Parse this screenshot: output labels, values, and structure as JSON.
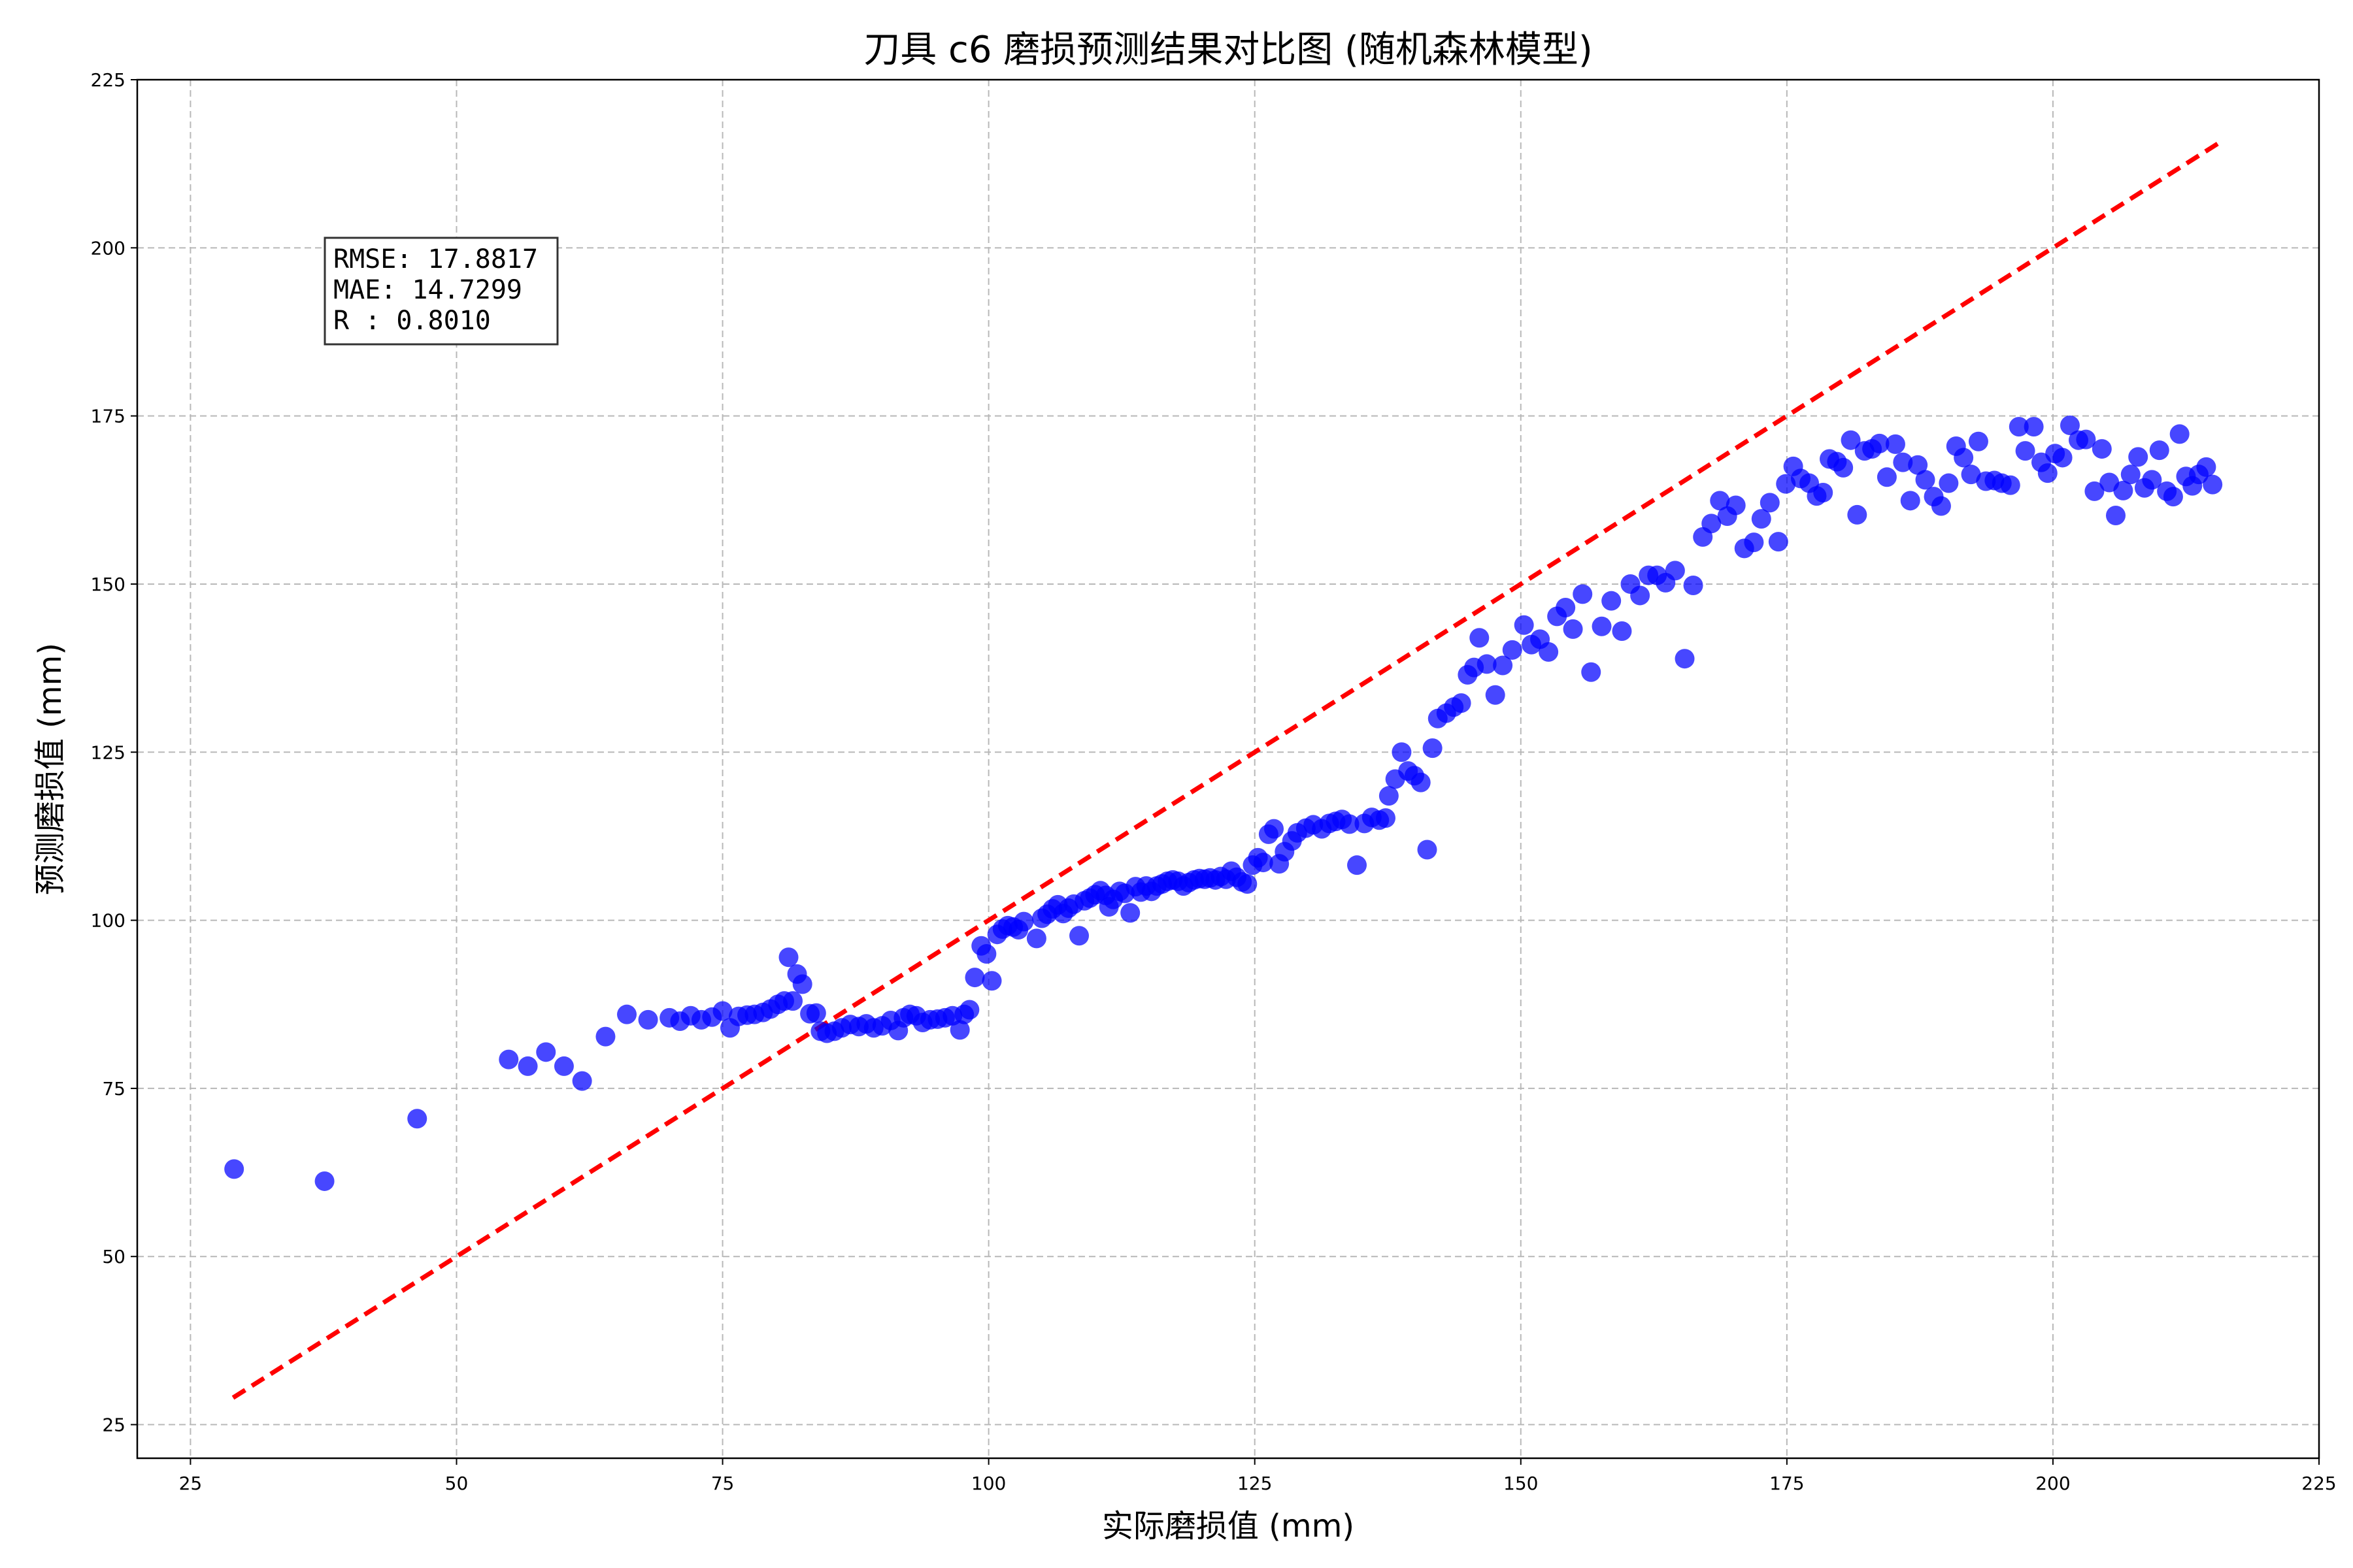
{
  "chart_data": {
    "type": "scatter",
    "title": "刀具 c6 磨损预测结果对比图 (随机森林模型)",
    "xlabel": "实际磨损值 (mm)",
    "ylabel": "预测磨损值 (mm)",
    "xlim": [
      20,
      225
    ],
    "ylim": [
      20,
      225
    ],
    "xticks": [
      25,
      50,
      75,
      100,
      125,
      150,
      175,
      200,
      225
    ],
    "yticks": [
      25,
      50,
      75,
      100,
      125,
      150,
      175,
      200,
      225
    ],
    "grid": true,
    "point_color": "#0000ff",
    "reference_line": {
      "color": "#ff0000",
      "style": "dashed",
      "x": [
        29,
        215.5
      ],
      "y": [
        29,
        215.5
      ]
    },
    "stats": {
      "lines": [
        "RMSE: 17.8817",
        "MAE: 14.7299",
        "R  : 0.8010"
      ]
    },
    "points": [
      [
        29.1,
        63.0
      ],
      [
        37.6,
        61.2
      ],
      [
        46.3,
        70.5
      ],
      [
        54.9,
        79.3
      ],
      [
        56.7,
        78.3
      ],
      [
        58.4,
        80.4
      ],
      [
        60.1,
        78.3
      ],
      [
        61.8,
        76.1
      ],
      [
        64.0,
        82.7
      ],
      [
        66.0,
        86.0
      ],
      [
        68.0,
        85.2
      ],
      [
        70.0,
        85.5
      ],
      [
        71.0,
        85.0
      ],
      [
        72.0,
        85.8
      ],
      [
        73.0,
        85.2
      ],
      [
        74.0,
        85.6
      ],
      [
        75.0,
        86.5
      ],
      [
        75.7,
        84.0
      ],
      [
        76.5,
        85.7
      ],
      [
        77.3,
        85.9
      ],
      [
        78.0,
        86.0
      ],
      [
        78.8,
        86.3
      ],
      [
        79.5,
        86.8
      ],
      [
        80.2,
        87.5
      ],
      [
        80.8,
        88.0
      ],
      [
        81.2,
        94.5
      ],
      [
        81.6,
        88.0
      ],
      [
        82.0,
        92.0
      ],
      [
        82.5,
        90.5
      ],
      [
        83.2,
        86.1
      ],
      [
        83.8,
        86.2
      ],
      [
        84.2,
        83.5
      ],
      [
        84.8,
        83.2
      ],
      [
        85.5,
        83.5
      ],
      [
        86.2,
        84.0
      ],
      [
        87.0,
        84.5
      ],
      [
        87.8,
        84.2
      ],
      [
        88.5,
        84.6
      ],
      [
        89.2,
        84.0
      ],
      [
        90.0,
        84.3
      ],
      [
        90.8,
        85.1
      ],
      [
        91.5,
        83.6
      ],
      [
        92.0,
        85.5
      ],
      [
        92.6,
        86.0
      ],
      [
        93.2,
        85.8
      ],
      [
        93.8,
        84.8
      ],
      [
        94.5,
        85.2
      ],
      [
        95.2,
        85.3
      ],
      [
        95.9,
        85.5
      ],
      [
        96.6,
        85.8
      ],
      [
        97.3,
        83.7
      ],
      [
        97.7,
        86.0
      ],
      [
        98.2,
        86.7
      ],
      [
        98.7,
        91.5
      ],
      [
        99.3,
        96.2
      ],
      [
        99.8,
        95.0
      ],
      [
        100.3,
        91.0
      ],
      [
        100.8,
        97.9
      ],
      [
        101.3,
        98.7
      ],
      [
        101.8,
        99.2
      ],
      [
        102.3,
        99.0
      ],
      [
        102.8,
        98.6
      ],
      [
        103.3,
        99.8
      ],
      [
        104.5,
        97.3
      ],
      [
        105.0,
        100.3
      ],
      [
        105.5,
        100.9
      ],
      [
        106.0,
        101.7
      ],
      [
        106.5,
        102.3
      ],
      [
        107.0,
        101.0
      ],
      [
        107.5,
        101.8
      ],
      [
        108.0,
        102.4
      ],
      [
        108.5,
        97.7
      ],
      [
        109.0,
        102.9
      ],
      [
        109.5,
        103.3
      ],
      [
        110.0,
        103.8
      ],
      [
        110.5,
        104.4
      ],
      [
        111.0,
        103.7
      ],
      [
        111.3,
        102.0
      ],
      [
        111.7,
        103.1
      ],
      [
        112.3,
        104.3
      ],
      [
        112.8,
        104.0
      ],
      [
        113.3,
        101.1
      ],
      [
        113.8,
        105.0
      ],
      [
        114.3,
        104.2
      ],
      [
        114.8,
        105.1
      ],
      [
        115.3,
        104.3
      ],
      [
        115.8,
        105.1
      ],
      [
        116.3,
        105.4
      ],
      [
        116.8,
        105.8
      ],
      [
        117.3,
        106.0
      ],
      [
        117.8,
        105.8
      ],
      [
        118.3,
        105.1
      ],
      [
        118.8,
        105.6
      ],
      [
        119.3,
        106.0
      ],
      [
        119.8,
        106.2
      ],
      [
        120.3,
        106.1
      ],
      [
        120.8,
        106.3
      ],
      [
        121.3,
        106.0
      ],
      [
        121.8,
        106.5
      ],
      [
        122.3,
        106.1
      ],
      [
        122.8,
        107.3
      ],
      [
        123.3,
        106.4
      ],
      [
        123.8,
        105.7
      ],
      [
        124.3,
        105.4
      ],
      [
        124.8,
        108.2
      ],
      [
        125.3,
        109.3
      ],
      [
        125.8,
        108.6
      ],
      [
        126.3,
        112.8
      ],
      [
        126.8,
        113.6
      ],
      [
        127.3,
        108.4
      ],
      [
        127.8,
        110.2
      ],
      [
        128.5,
        111.8
      ],
      [
        129.0,
        113.0
      ],
      [
        129.8,
        113.7
      ],
      [
        130.5,
        114.2
      ],
      [
        131.3,
        113.6
      ],
      [
        132.0,
        114.4
      ],
      [
        132.6,
        114.7
      ],
      [
        133.2,
        115.0
      ],
      [
        133.9,
        114.3
      ],
      [
        134.6,
        108.2
      ],
      [
        135.3,
        114.4
      ],
      [
        136.0,
        115.3
      ],
      [
        136.7,
        114.9
      ],
      [
        137.3,
        115.2
      ],
      [
        137.6,
        118.5
      ],
      [
        138.2,
        121.0
      ],
      [
        138.8,
        125.0
      ],
      [
        139.4,
        122.2
      ],
      [
        140.0,
        121.5
      ],
      [
        140.6,
        120.5
      ],
      [
        141.2,
        110.5
      ],
      [
        141.7,
        125.6
      ],
      [
        142.2,
        130.0
      ],
      [
        143.0,
        130.8
      ],
      [
        143.7,
        131.7
      ],
      [
        144.4,
        132.3
      ],
      [
        145.0,
        136.5
      ],
      [
        145.6,
        137.6
      ],
      [
        146.1,
        142.0
      ],
      [
        146.8,
        138.1
      ],
      [
        147.6,
        133.5
      ],
      [
        148.3,
        137.9
      ],
      [
        149.2,
        140.2
      ],
      [
        150.3,
        143.9
      ],
      [
        151.0,
        141.0
      ],
      [
        151.8,
        141.8
      ],
      [
        152.6,
        139.9
      ],
      [
        153.4,
        145.2
      ],
      [
        154.2,
        146.5
      ],
      [
        154.9,
        143.3
      ],
      [
        155.8,
        148.5
      ],
      [
        156.6,
        136.9
      ],
      [
        157.6,
        143.7
      ],
      [
        158.5,
        147.5
      ],
      [
        159.5,
        143.0
      ],
      [
        160.3,
        150.0
      ],
      [
        161.2,
        148.3
      ],
      [
        162.0,
        151.3
      ],
      [
        162.8,
        151.3
      ],
      [
        163.6,
        150.2
      ],
      [
        164.5,
        152.0
      ],
      [
        165.4,
        138.9
      ],
      [
        166.2,
        149.8
      ],
      [
        167.1,
        157.0
      ],
      [
        167.9,
        159.0
      ],
      [
        168.7,
        162.4
      ],
      [
        169.4,
        160.1
      ],
      [
        170.2,
        161.7
      ],
      [
        171.0,
        155.3
      ],
      [
        171.9,
        156.2
      ],
      [
        172.6,
        159.7
      ],
      [
        173.4,
        162.1
      ],
      [
        174.2,
        156.3
      ],
      [
        174.9,
        164.9
      ],
      [
        175.6,
        167.5
      ],
      [
        176.3,
        165.7
      ],
      [
        177.1,
        165.0
      ],
      [
        177.8,
        163.1
      ],
      [
        178.4,
        163.6
      ],
      [
        179.0,
        168.6
      ],
      [
        179.7,
        168.2
      ],
      [
        180.3,
        167.3
      ],
      [
        181.0,
        171.4
      ],
      [
        181.6,
        160.3
      ],
      [
        182.3,
        169.8
      ],
      [
        183.0,
        170.1
      ],
      [
        183.7,
        170.9
      ],
      [
        184.4,
        165.9
      ],
      [
        185.2,
        170.8
      ],
      [
        185.9,
        168.1
      ],
      [
        186.6,
        162.4
      ],
      [
        187.3,
        167.7
      ],
      [
        188.0,
        165.5
      ],
      [
        188.8,
        163.0
      ],
      [
        189.5,
        161.6
      ],
      [
        190.2,
        165.0
      ],
      [
        190.9,
        170.5
      ],
      [
        191.6,
        168.8
      ],
      [
        192.3,
        166.3
      ],
      [
        193.0,
        171.2
      ],
      [
        193.7,
        165.3
      ],
      [
        194.5,
        165.4
      ],
      [
        195.2,
        165.0
      ],
      [
        196.0,
        164.7
      ],
      [
        196.8,
        173.4
      ],
      [
        197.4,
        169.8
      ],
      [
        198.2,
        173.4
      ],
      [
        198.9,
        168.1
      ],
      [
        199.5,
        166.5
      ],
      [
        200.2,
        169.4
      ],
      [
        200.9,
        168.8
      ],
      [
        201.6,
        173.6
      ],
      [
        202.4,
        171.4
      ],
      [
        203.1,
        171.5
      ],
      [
        203.9,
        163.8
      ],
      [
        204.6,
        170.1
      ],
      [
        205.3,
        165.1
      ],
      [
        205.9,
        160.2
      ],
      [
        206.6,
        163.9
      ],
      [
        207.3,
        166.3
      ],
      [
        208.0,
        168.9
      ],
      [
        208.6,
        164.3
      ],
      [
        209.3,
        165.5
      ],
      [
        210.0,
        169.9
      ],
      [
        210.7,
        163.8
      ],
      [
        211.3,
        163.0
      ],
      [
        211.9,
        172.3
      ],
      [
        212.5,
        166.0
      ],
      [
        213.1,
        164.6
      ],
      [
        213.7,
        166.3
      ],
      [
        214.4,
        167.4
      ],
      [
        215.0,
        164.8
      ]
    ]
  }
}
